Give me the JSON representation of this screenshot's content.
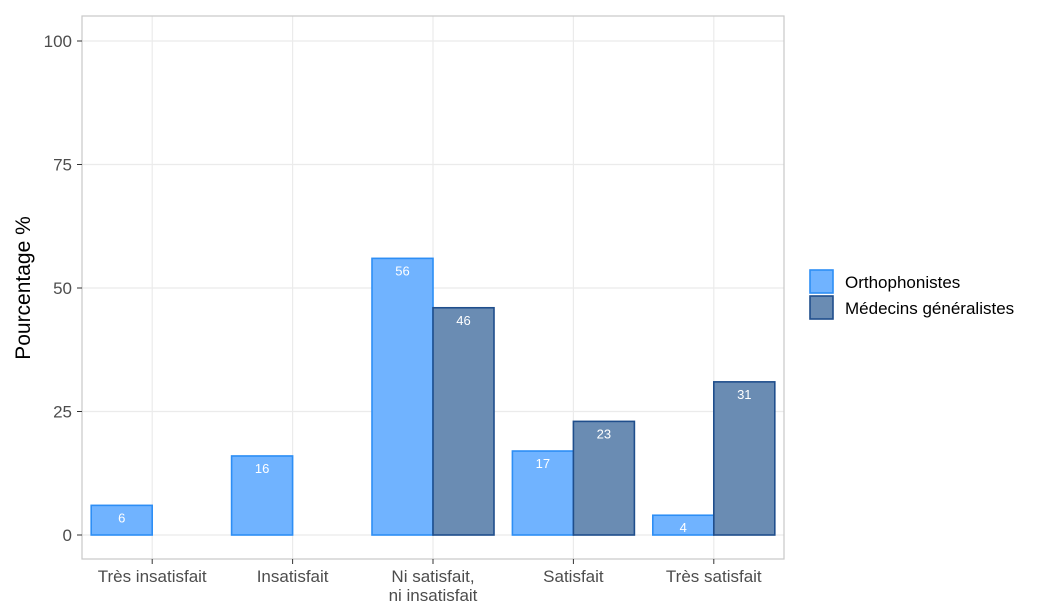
{
  "chart_data": {
    "type": "bar",
    "categories": [
      [
        "Très insatisfait"
      ],
      [
        "Insatisfait"
      ],
      [
        "Ni satisfait,",
        "ni insatisfait"
      ],
      [
        "Satisfait"
      ],
      [
        "Très satisfait"
      ]
    ],
    "series": [
      {
        "name": "Orthophonistes",
        "values": [
          6,
          16,
          56,
          17,
          4
        ],
        "fill": "#70b3ff",
        "stroke": "#2d8ef5"
      },
      {
        "name": "Médecins généralistes",
        "values": [
          0,
          0,
          46,
          23,
          31
        ],
        "fill": "#6a8cb3",
        "stroke": "#1f4e8c"
      }
    ],
    "title": "",
    "xlabel": "",
    "ylabel": "Pourcentage %",
    "ylim": [
      0,
      104
    ],
    "yticks": [
      0,
      25,
      50,
      75,
      100
    ],
    "grid": true,
    "legend_position": "right",
    "colors": {
      "grid": "#ebebeb",
      "panel_border": "#c8c8c8",
      "tick_text": "#4d4d4d"
    }
  }
}
